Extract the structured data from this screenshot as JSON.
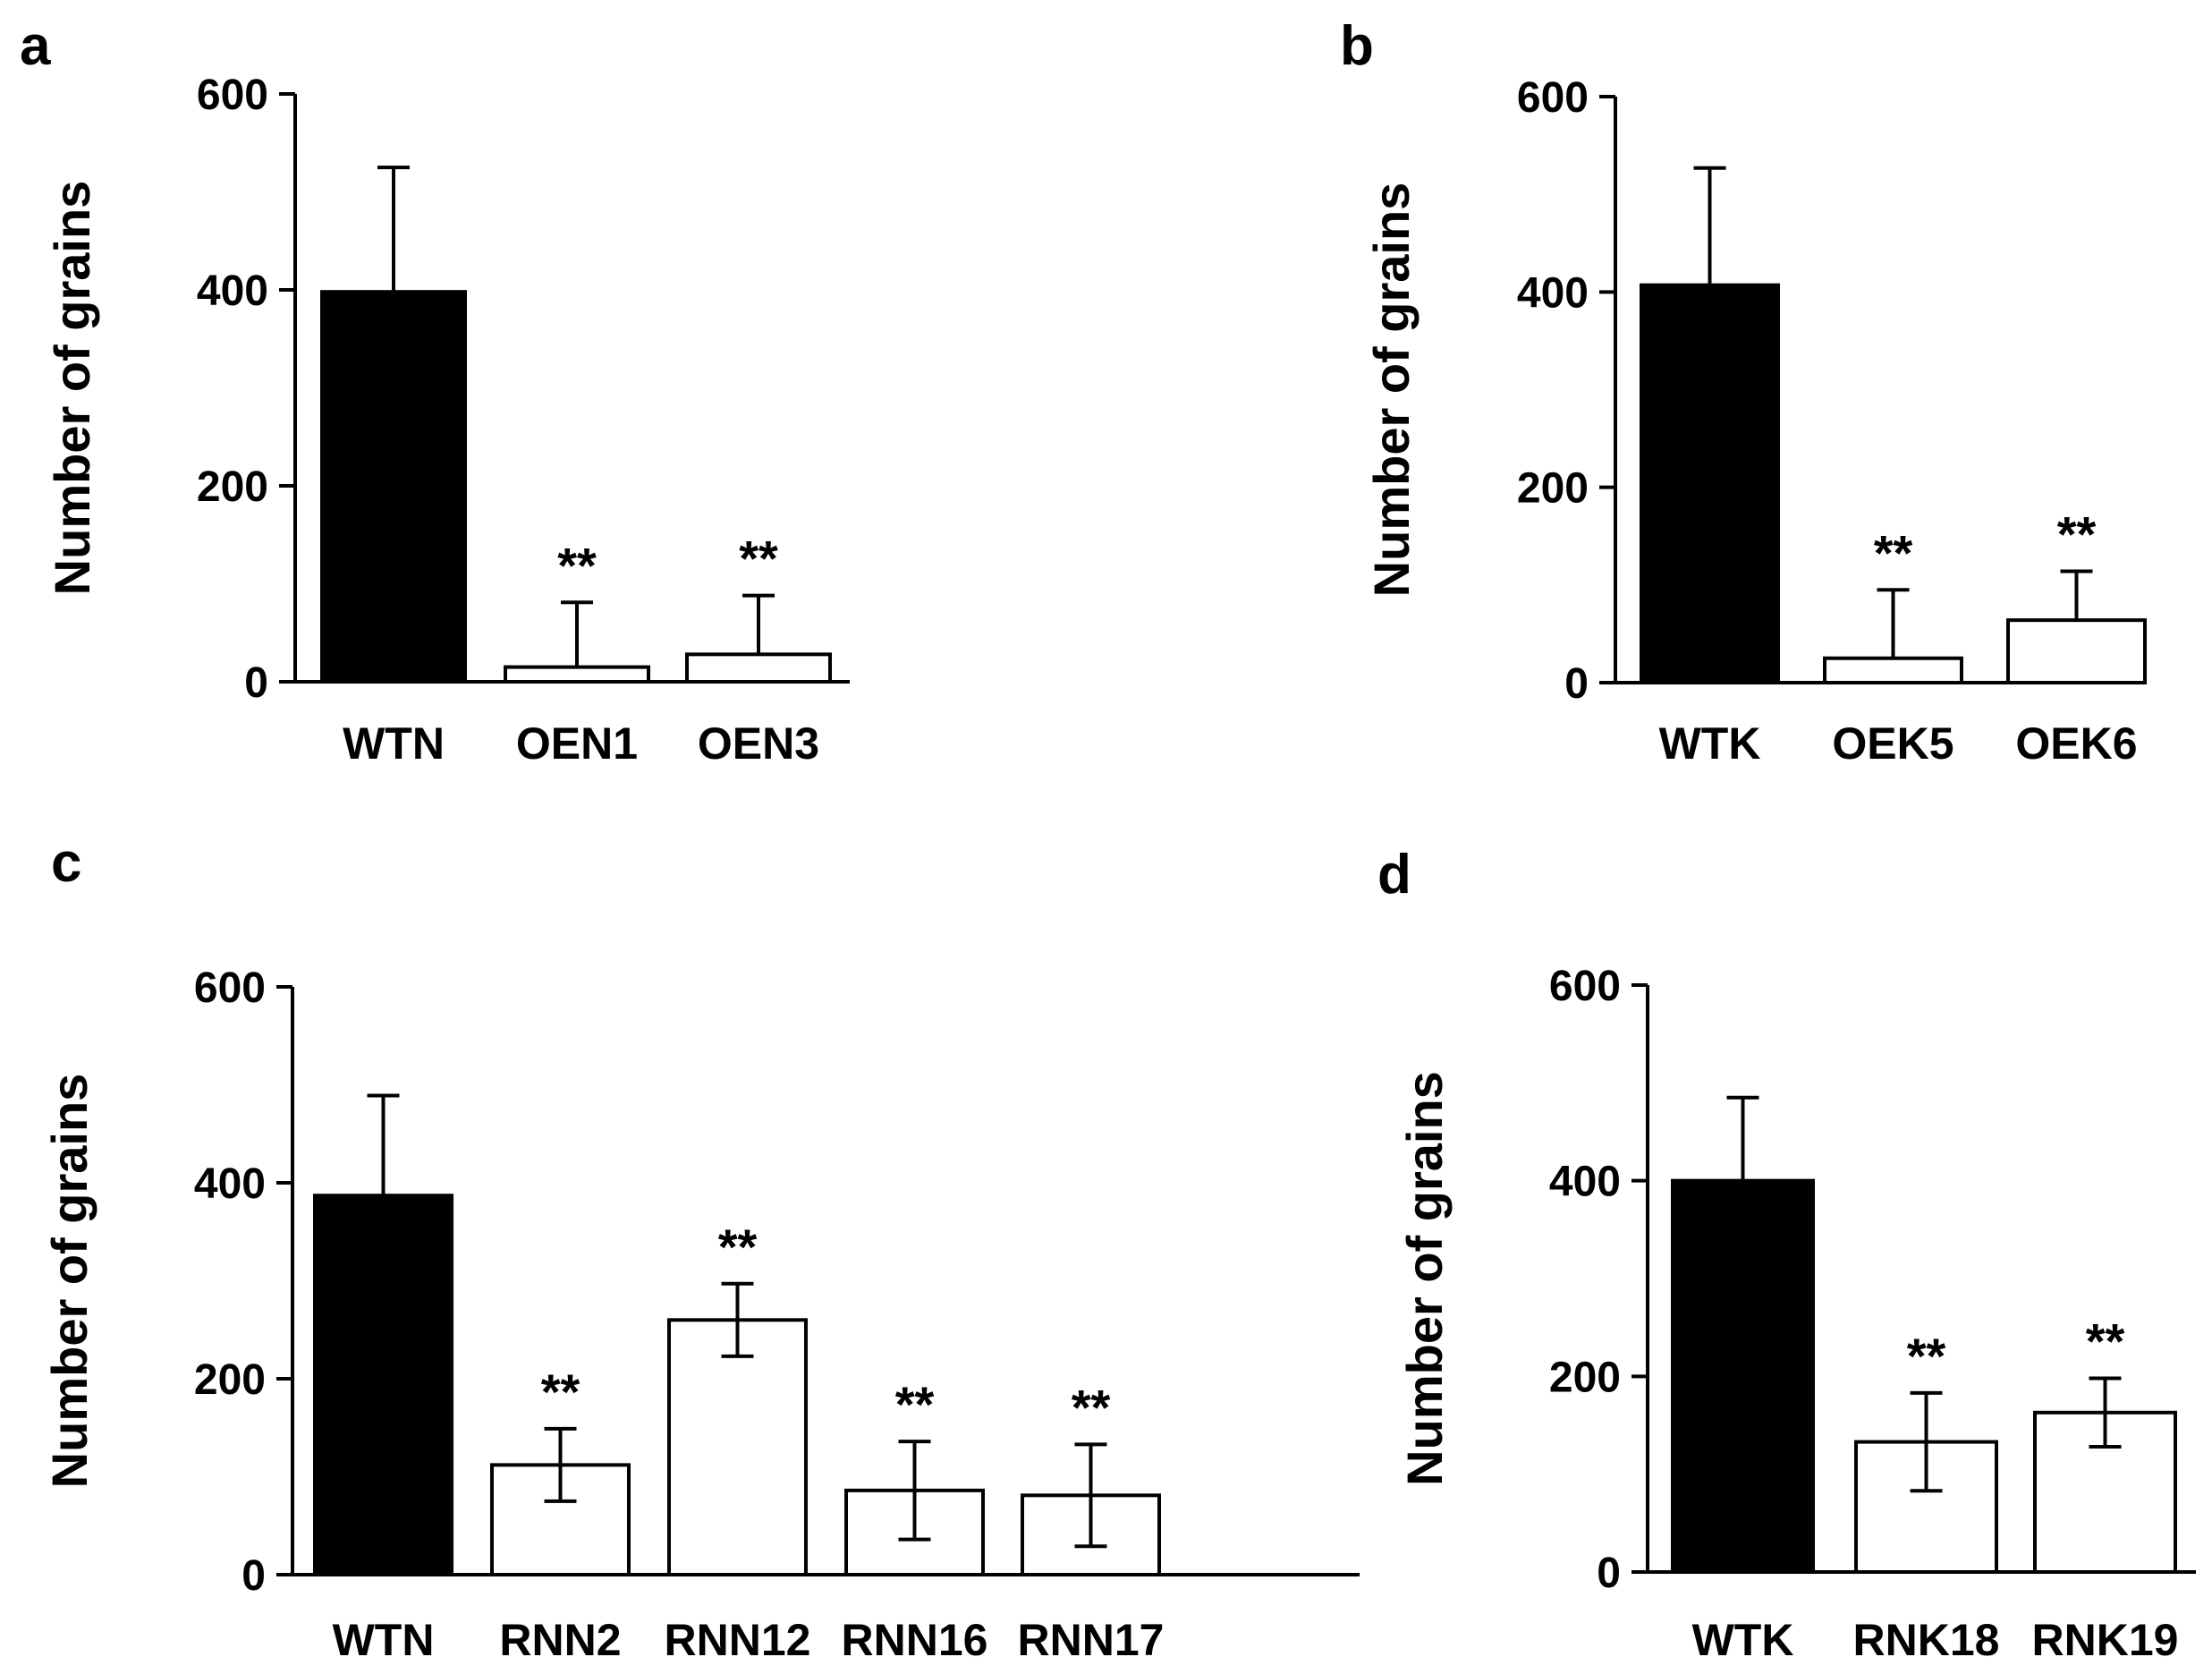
{
  "chart_data": [
    {
      "panel": "a",
      "type": "bar",
      "ylabel": "Number of grains",
      "xlabel": "",
      "ylim": [
        0,
        600
      ],
      "yticks": [
        0,
        200,
        400,
        600
      ],
      "categories": [
        "WTN",
        "OEN1",
        "OEN3"
      ],
      "values": [
        398,
        15,
        28
      ],
      "errors": [
        127,
        66,
        60
      ],
      "error_style": "upper",
      "significance": [
        "",
        "**",
        "**"
      ],
      "fills": [
        "#000000",
        "#ffffff",
        "#ffffff"
      ],
      "grid": false
    },
    {
      "panel": "b",
      "type": "bar",
      "ylabel": "Number of grains",
      "xlabel": "",
      "ylim": [
        0,
        600
      ],
      "yticks": [
        0,
        200,
        400,
        600
      ],
      "categories": [
        "WTK",
        "OEK5",
        "OEK6"
      ],
      "values": [
        407,
        25,
        64
      ],
      "errors": [
        120,
        70,
        50
      ],
      "error_style": "upper",
      "significance": [
        "",
        "**",
        "**"
      ],
      "fills": [
        "#000000",
        "#ffffff",
        "#ffffff"
      ],
      "grid": false
    },
    {
      "panel": "c",
      "type": "bar",
      "ylabel": "Number of grains",
      "xlabel": "",
      "ylim": [
        0,
        600
      ],
      "yticks": [
        0,
        200,
        400,
        600
      ],
      "categories": [
        "WTN",
        "RNN2",
        "RNN12",
        "RNN16",
        "RNN17"
      ],
      "values": [
        387,
        112,
        260,
        86,
        81
      ],
      "errors": [
        102,
        37,
        37,
        50,
        52
      ],
      "error_style": "upper-wt",
      "significance": [
        "",
        "**",
        "**",
        "**",
        "**"
      ],
      "fills": [
        "#000000",
        "#ffffff",
        "#ffffff",
        "#ffffff",
        "#ffffff"
      ],
      "grid": false
    },
    {
      "panel": "d",
      "type": "bar",
      "ylabel": "Number of grains",
      "xlabel": "",
      "ylim": [
        0,
        600
      ],
      "yticks": [
        0,
        200,
        400,
        600
      ],
      "categories": [
        "WTK",
        "RNK18",
        "RNK19"
      ],
      "values": [
        400,
        133,
        163
      ],
      "errors": [
        85,
        50,
        35
      ],
      "error_style": "upper-wt",
      "significance": [
        "",
        "**",
        "**"
      ],
      "fills": [
        "#000000",
        "#ffffff",
        "#ffffff"
      ],
      "grid": false
    }
  ]
}
